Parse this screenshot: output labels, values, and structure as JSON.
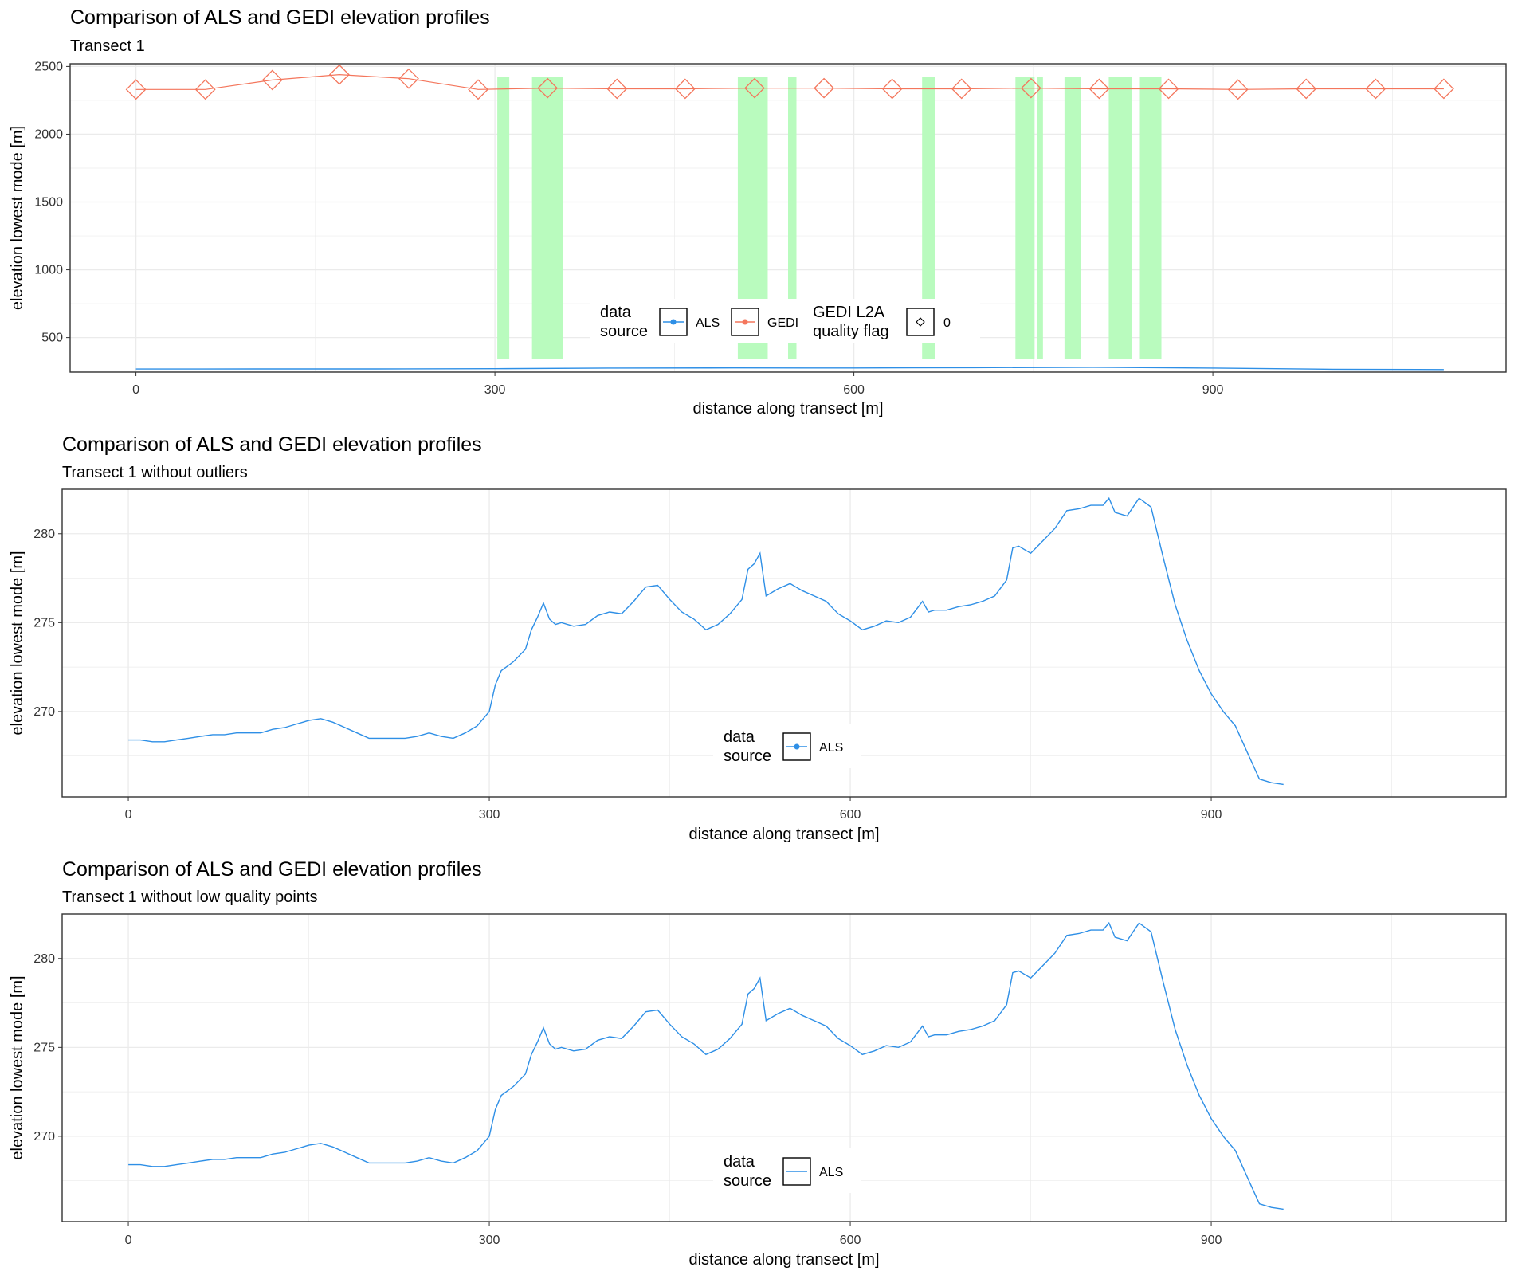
{
  "colors": {
    "als": "#2E8FE6",
    "gedi": "#F4765C",
    "quality_band": "#B9FBBE",
    "grid": "#EBEBEB",
    "panel_border": "#333333"
  },
  "chart_data": [
    {
      "type": "line",
      "title": "Comparison of ALS and GEDI elevation profiles",
      "subtitle": "Transect 1",
      "xlabel": "distance along transect [m]",
      "ylabel": "elevation lowest mode [m]",
      "xlim": [
        -55,
        1145
      ],
      "ylim": [
        245,
        2520
      ],
      "xticks": [
        0,
        300,
        600,
        900
      ],
      "xtick_labels": [
        "0",
        "300",
        "600",
        "900"
      ],
      "yticks": [
        500,
        1000,
        1500,
        2000,
        2500
      ],
      "ytick_labels": [
        "500",
        "1000",
        "1500",
        "2000",
        "2500"
      ],
      "grid": true,
      "legend_placement": "bottom-center",
      "legend": {
        "source_title": "data\nsource",
        "source_entries": [
          "ALS",
          "GEDI"
        ],
        "quality_title": "GEDI L2A\nquality flag",
        "quality_entries": [
          "0"
        ]
      },
      "quality_bands": [
        [
          302,
          312
        ],
        [
          331,
          357
        ],
        [
          503,
          528
        ],
        [
          545,
          552
        ],
        [
          657,
          668
        ],
        [
          735,
          751
        ],
        [
          753,
          758
        ],
        [
          776,
          790
        ],
        [
          813,
          832
        ],
        [
          839,
          857
        ]
      ],
      "series": [
        {
          "name": "GEDI",
          "marker": "diamond",
          "x": [
            0,
            58,
            114,
            170,
            228,
            286,
            344,
            402,
            459,
            517,
            575,
            632,
            690,
            748,
            805,
            863,
            921,
            978,
            1036,
            1093
          ],
          "y": [
            2330,
            2330,
            2400,
            2440,
            2410,
            2330,
            2340,
            2335,
            2335,
            2340,
            2340,
            2335,
            2335,
            2340,
            2335,
            2335,
            2330,
            2335,
            2335,
            2335
          ]
        },
        {
          "name": "ALS",
          "x": [
            0,
            100,
            200,
            300,
            400,
            500,
            600,
            700,
            800,
            900,
            1000,
            1093
          ],
          "y": [
            268,
            268.5,
            268.5,
            270,
            275,
            276,
            275.5,
            278,
            281,
            275,
            266,
            264
          ]
        }
      ]
    },
    {
      "type": "line",
      "title": "Comparison of ALS and GEDI elevation profiles",
      "subtitle": "Transect 1 without outliers",
      "xlabel": "distance along transect [m]",
      "ylabel": "elevation lowest mode [m]",
      "xlim": [
        -55,
        1145
      ],
      "ylim": [
        265.2,
        282.5
      ],
      "xticks": [
        0,
        300,
        600,
        900
      ],
      "xtick_labels": [
        "0",
        "300",
        "600",
        "900"
      ],
      "yticks": [
        270,
        275,
        280
      ],
      "ytick_labels": [
        "270",
        "275",
        "280"
      ],
      "grid": true,
      "legend_placement": "bottom-center",
      "legend": {
        "source_title": "data\nsource",
        "source_entries": [
          "ALS"
        ],
        "marker": true
      },
      "series": [
        {
          "name": "ALS",
          "x": [
            0,
            10,
            20,
            30,
            40,
            50,
            60,
            70,
            80,
            90,
            100,
            110,
            120,
            130,
            140,
            150,
            160,
            170,
            180,
            190,
            200,
            210,
            220,
            230,
            240,
            250,
            260,
            270,
            280,
            290,
            300,
            305,
            310,
            320,
            330,
            335,
            340,
            345,
            350,
            355,
            360,
            370,
            380,
            390,
            400,
            410,
            420,
            430,
            440,
            450,
            460,
            470,
            480,
            490,
            500,
            510,
            515,
            520,
            525,
            530,
            540,
            550,
            560,
            570,
            580,
            590,
            600,
            610,
            620,
            630,
            640,
            650,
            660,
            665,
            670,
            680,
            690,
            700,
            710,
            720,
            730,
            735,
            740,
            750,
            760,
            770,
            780,
            790,
            800,
            810,
            815,
            820,
            830,
            840,
            850,
            860,
            870,
            880,
            890,
            900,
            910,
            920,
            930,
            940,
            950,
            960
          ],
          "y": [
            268.4,
            268.4,
            268.3,
            268.3,
            268.4,
            268.5,
            268.6,
            268.7,
            268.7,
            268.8,
            268.8,
            268.8,
            269.0,
            269.1,
            269.3,
            269.5,
            269.6,
            269.4,
            269.1,
            268.8,
            268.5,
            268.5,
            268.5,
            268.5,
            268.6,
            268.8,
            268.6,
            268.5,
            268.8,
            269.2,
            270.0,
            271.5,
            272.3,
            272.8,
            273.5,
            274.6,
            275.3,
            276.1,
            275.2,
            274.9,
            275.0,
            274.8,
            274.9,
            275.4,
            275.6,
            275.5,
            276.2,
            277.0,
            277.1,
            276.3,
            275.6,
            275.2,
            274.6,
            274.9,
            275.5,
            276.3,
            278.0,
            278.3,
            278.9,
            276.5,
            276.9,
            277.2,
            276.8,
            276.5,
            276.2,
            275.5,
            275.1,
            274.6,
            274.8,
            275.1,
            275.0,
            275.3,
            276.2,
            275.6,
            275.7,
            275.7,
            275.9,
            276.0,
            276.2,
            276.5,
            277.4,
            279.2,
            279.3,
            278.9,
            279.6,
            280.3,
            281.3,
            281.4,
            281.6,
            281.6,
            282.0,
            281.2,
            281.0,
            282.0,
            281.5,
            278.7,
            276.0,
            274.0,
            272.3,
            271.0,
            270.0,
            269.2,
            267.7,
            266.2,
            266.0,
            265.9
          ]
        }
      ]
    },
    {
      "type": "line",
      "title": "Comparison of ALS and GEDI elevation profiles",
      "subtitle": "Transect 1 without low quality points",
      "xlabel": "distance along transect [m]",
      "ylabel": "elevation lowest mode [m]",
      "xlim": [
        -55,
        1145
      ],
      "ylim": [
        265.2,
        282.5
      ],
      "xticks": [
        0,
        300,
        600,
        900
      ],
      "xtick_labels": [
        "0",
        "300",
        "600",
        "900"
      ],
      "yticks": [
        270,
        275,
        280
      ],
      "ytick_labels": [
        "270",
        "275",
        "280"
      ],
      "grid": true,
      "legend_placement": "bottom-center",
      "legend": {
        "source_title": "data\nsource",
        "source_entries": [
          "ALS"
        ],
        "marker": false
      },
      "series": [
        {
          "name": "ALS",
          "x": [
            0,
            10,
            20,
            30,
            40,
            50,
            60,
            70,
            80,
            90,
            100,
            110,
            120,
            130,
            140,
            150,
            160,
            170,
            180,
            190,
            200,
            210,
            220,
            230,
            240,
            250,
            260,
            270,
            280,
            290,
            300,
            305,
            310,
            320,
            330,
            335,
            340,
            345,
            350,
            355,
            360,
            370,
            380,
            390,
            400,
            410,
            420,
            430,
            440,
            450,
            460,
            470,
            480,
            490,
            500,
            510,
            515,
            520,
            525,
            530,
            540,
            550,
            560,
            570,
            580,
            590,
            600,
            610,
            620,
            630,
            640,
            650,
            660,
            665,
            670,
            680,
            690,
            700,
            710,
            720,
            730,
            735,
            740,
            750,
            760,
            770,
            780,
            790,
            800,
            810,
            815,
            820,
            830,
            840,
            850,
            860,
            870,
            880,
            890,
            900,
            910,
            920,
            930,
            940,
            950,
            960
          ],
          "y": [
            268.4,
            268.4,
            268.3,
            268.3,
            268.4,
            268.5,
            268.6,
            268.7,
            268.7,
            268.8,
            268.8,
            268.8,
            269.0,
            269.1,
            269.3,
            269.5,
            269.6,
            269.4,
            269.1,
            268.8,
            268.5,
            268.5,
            268.5,
            268.5,
            268.6,
            268.8,
            268.6,
            268.5,
            268.8,
            269.2,
            270.0,
            271.5,
            272.3,
            272.8,
            273.5,
            274.6,
            275.3,
            276.1,
            275.2,
            274.9,
            275.0,
            274.8,
            274.9,
            275.4,
            275.6,
            275.5,
            276.2,
            277.0,
            277.1,
            276.3,
            275.6,
            275.2,
            274.6,
            274.9,
            275.5,
            276.3,
            278.0,
            278.3,
            278.9,
            276.5,
            276.9,
            277.2,
            276.8,
            276.5,
            276.2,
            275.5,
            275.1,
            274.6,
            274.8,
            275.1,
            275.0,
            275.3,
            276.2,
            275.6,
            275.7,
            275.7,
            275.9,
            276.0,
            276.2,
            276.5,
            277.4,
            279.2,
            279.3,
            278.9,
            279.6,
            280.3,
            281.3,
            281.4,
            281.6,
            281.6,
            282.0,
            281.2,
            281.0,
            282.0,
            281.5,
            278.7,
            276.0,
            274.0,
            272.3,
            271.0,
            270.0,
            269.2,
            267.7,
            266.2,
            266.0,
            265.9
          ]
        }
      ]
    }
  ]
}
